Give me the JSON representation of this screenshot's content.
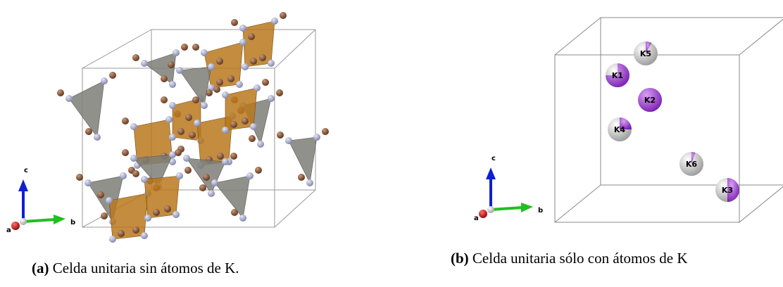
{
  "panels": [
    {
      "axes": {
        "a": "a",
        "b": "b",
        "c": "c"
      },
      "caption": {
        "label": "(a)",
        "text": "Celda unitaria sin átomos de K."
      }
    },
    {
      "axes": {
        "a": "a",
        "b": "b",
        "c": "c"
      },
      "atoms": [
        "K5",
        "K1",
        "K2",
        "K4",
        "K6",
        "K3"
      ],
      "caption": {
        "label": "(b)",
        "text": "Celda unitaria sólo con átomos de K"
      }
    }
  ]
}
